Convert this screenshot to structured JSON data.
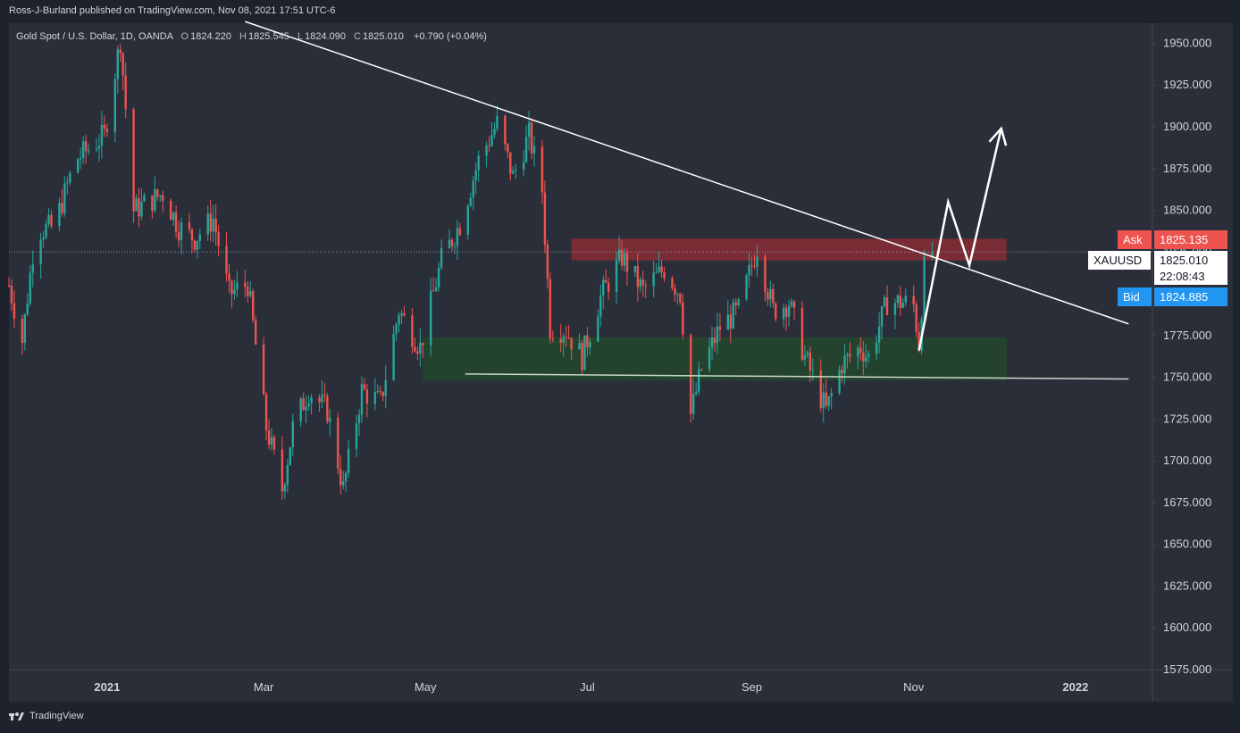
{
  "header": {
    "publisher": "Ross-J-Burland published on TradingView.com, Nov 08, 2021 17:51 UTC-6"
  },
  "legend": {
    "symbol": "Gold Spot / U.S. Dollar, 1D, OANDA",
    "o_key": "O",
    "o": "1824.220",
    "h_key": "H",
    "h": "1825.545",
    "l_key": "L",
    "l": "1824.090",
    "c_key": "C",
    "c": "1825.010",
    "change": "+0.790 (+0.04%)"
  },
  "price_tags": {
    "ask_label": "Ask",
    "ask_value": "1825.135",
    "symbol_label": "XAUUSD",
    "last_value": "1825.010",
    "countdown": "22:08:43",
    "bid_label": "Bid",
    "bid_value": "1824.885"
  },
  "footer": {
    "brand": "TradingView"
  },
  "colors": {
    "background": "#2a2e39",
    "up": "#26a69a",
    "down": "#ef5350",
    "resistance_zone": "#7a2c35",
    "support_zone": "#24432f",
    "trendline": "#ffffff",
    "ask": "#ef5350",
    "bid": "#2196f3"
  },
  "chart_data": {
    "type": "candlestick",
    "symbol": "XAUUSD",
    "timeframe": "1D",
    "ylim": [
      1575,
      1962
    ],
    "y_ticks": [
      1575,
      1600,
      1625,
      1650,
      1675,
      1700,
      1725,
      1750,
      1775,
      1800,
      1825,
      1850,
      1875,
      1900,
      1925,
      1950
    ],
    "y_tick_labels": [
      "1575.000",
      "1600.000",
      "1625.000",
      "1650.000",
      "1675.000",
      "1700.000",
      "1725.000",
      "1750.000",
      "1775.000",
      "1800.000",
      "1825.000",
      "1850.000",
      "1875.000",
      "1900.000",
      "1925.000",
      "1950.000"
    ],
    "x_ticks": [
      {
        "label": "2021",
        "date": "2021-01-01"
      },
      {
        "label": "Mar",
        "date": "2021-03-01"
      },
      {
        "label": "May",
        "date": "2021-05-01"
      },
      {
        "label": "Jul",
        "date": "2021-07-01"
      },
      {
        "label": "Sep",
        "date": "2021-09-01"
      },
      {
        "label": "Nov",
        "date": "2021-11-01"
      },
      {
        "label": "2022",
        "date": "2022-01-01"
      }
    ],
    "xlim": [
      "2020-11-25",
      "2022-01-30"
    ],
    "anchors": [
      [
        "2020-11-25",
        1805
      ],
      [
        "2020-11-30",
        1772
      ],
      [
        "2020-12-05",
        1838
      ],
      [
        "2020-12-12",
        1840
      ],
      [
        "2020-12-20",
        1880
      ],
      [
        "2020-12-31",
        1895
      ],
      [
        "2021-01-06",
        1952
      ],
      [
        "2021-01-11",
        1850
      ],
      [
        "2021-01-22",
        1860
      ],
      [
        "2021-01-28",
        1840
      ],
      [
        "2021-02-03",
        1833
      ],
      [
        "2021-02-10",
        1845
      ],
      [
        "2021-02-16",
        1800
      ],
      [
        "2021-02-23",
        1806
      ],
      [
        "2021-03-02",
        1720
      ],
      [
        "2021-03-08",
        1683
      ],
      [
        "2021-03-12",
        1720
      ],
      [
        "2021-03-18",
        1742
      ],
      [
        "2021-03-25",
        1730
      ],
      [
        "2021-03-31",
        1683
      ],
      [
        "2021-04-07",
        1742
      ],
      [
        "2021-04-14",
        1735
      ],
      [
        "2021-04-21",
        1790
      ],
      [
        "2021-04-29",
        1768
      ],
      [
        "2021-05-07",
        1820
      ],
      [
        "2021-05-14",
        1842
      ],
      [
        "2021-05-21",
        1880
      ],
      [
        "2021-05-28",
        1902
      ],
      [
        "2021-06-03",
        1870
      ],
      [
        "2021-06-09",
        1895
      ],
      [
        "2021-06-14",
        1862
      ],
      [
        "2021-06-17",
        1780
      ],
      [
        "2021-06-23",
        1778
      ],
      [
        "2021-06-29",
        1762
      ],
      [
        "2021-07-06",
        1798
      ],
      [
        "2021-07-14",
        1822
      ],
      [
        "2021-07-22",
        1802
      ],
      [
        "2021-07-30",
        1815
      ],
      [
        "2021-08-05",
        1800
      ],
      [
        "2021-08-09",
        1728
      ],
      [
        "2021-08-13",
        1755
      ],
      [
        "2021-08-20",
        1780
      ],
      [
        "2021-08-27",
        1790
      ],
      [
        "2021-09-03",
        1828
      ],
      [
        "2021-09-09",
        1790
      ],
      [
        "2021-09-15",
        1795
      ],
      [
        "2021-09-21",
        1762
      ],
      [
        "2021-09-29",
        1730
      ],
      [
        "2021-10-05",
        1758
      ],
      [
        "2021-10-12",
        1768
      ],
      [
        "2021-10-15",
        1762
      ],
      [
        "2021-10-22",
        1795
      ],
      [
        "2021-10-28",
        1795
      ],
      [
        "2021-11-01",
        1793
      ],
      [
        "2021-11-03",
        1770
      ],
      [
        "2021-11-05",
        1815
      ],
      [
        "2021-11-08",
        1825
      ]
    ],
    "resistance_zone": {
      "from": "2021-06-25",
      "to": "2021-12-06",
      "low": 1820,
      "high": 1833
    },
    "support_zone": {
      "from": "2021-04-30",
      "to": "2021-12-06",
      "low": 1748,
      "high": 1774
    },
    "support_line": {
      "from": [
        "2021-05-16",
        1752
      ],
      "to": [
        "2022-01-21",
        1749
      ]
    },
    "trendline": {
      "from": [
        "2021-02-22",
        1963
      ],
      "to": [
        "2022-01-21",
        1782
      ]
    },
    "projection_path": [
      [
        "2021-11-03",
        1766
      ],
      [
        "2021-11-14",
        1855
      ],
      [
        "2021-11-22",
        1817
      ],
      [
        "2021-12-04",
        1899
      ]
    ],
    "last_price": 1825.01
  }
}
